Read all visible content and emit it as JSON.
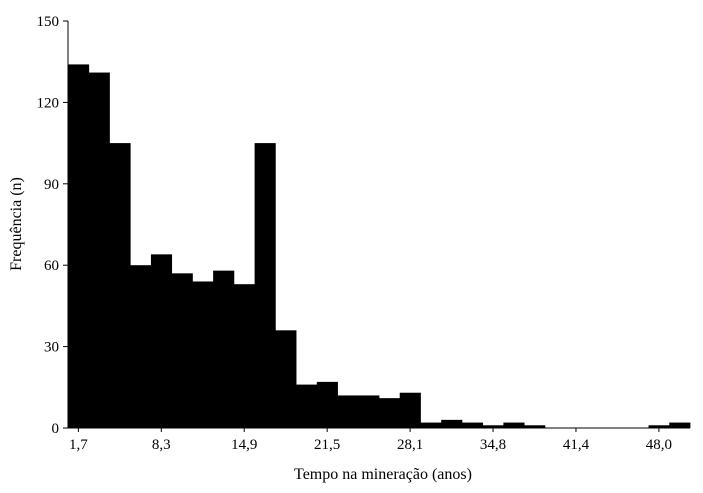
{
  "chart_data": {
    "type": "bar",
    "title": "",
    "xlabel": "Tempo na mineração (anos)",
    "ylabel": "Frequência (n)",
    "ylim": [
      0,
      150
    ],
    "yticks": [
      0,
      30,
      60,
      90,
      120,
      150
    ],
    "xtick_labels": [
      "1,7",
      "8,3",
      "14,9",
      "21,5",
      "28,1",
      "34,8",
      "41,4",
      "48,0"
    ],
    "xtick_bin_index": [
      0,
      4,
      8,
      12,
      16,
      20,
      24,
      28
    ],
    "bar_color": "#000000",
    "grid": false,
    "values": [
      134,
      131,
      105,
      60,
      64,
      57,
      54,
      58,
      53,
      105,
      36,
      16,
      17,
      12,
      12,
      11,
      13,
      2,
      3,
      2,
      1,
      2,
      1,
      0,
      0,
      0,
      0,
      0,
      1,
      2
    ]
  }
}
